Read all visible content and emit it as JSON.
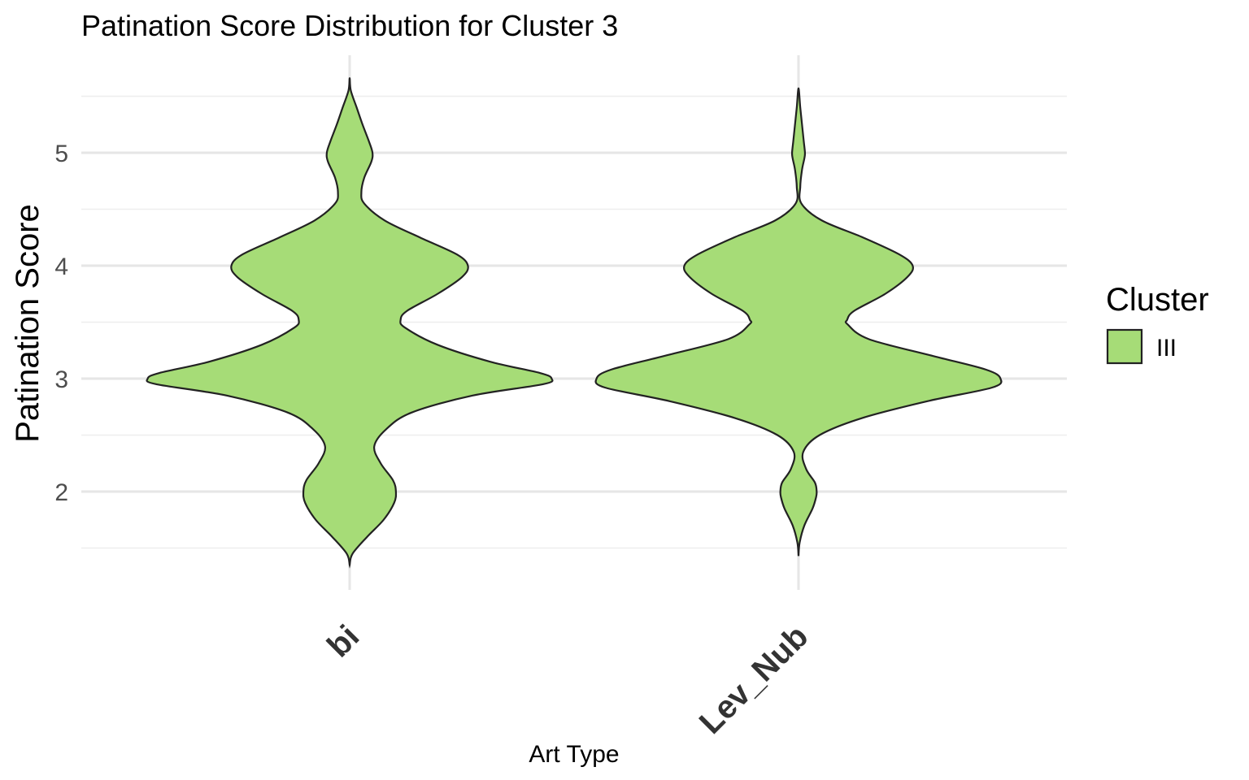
{
  "chart_data": {
    "type": "violin",
    "title": "Patination Score Distribution for Cluster 3",
    "xlabel": "Art Type",
    "ylabel": "Patination Score",
    "ylim": [
      1.35,
      5.72
    ],
    "yticks": [
      2,
      3,
      4,
      5
    ],
    "categories": [
      "bi",
      "Lev_Nub"
    ],
    "grid": true,
    "legend": {
      "title": "Cluster",
      "placement": "right",
      "entries": [
        {
          "label": "III",
          "color": "#a6dc77"
        }
      ]
    },
    "fill_color": "#a6dc77",
    "violins": [
      {
        "category": "bi",
        "y_min": 1.35,
        "y_max": 5.66,
        "profile": [
          [
            1.35,
            0.0
          ],
          [
            1.45,
            0.05
          ],
          [
            1.6,
            0.3
          ],
          [
            1.75,
            0.58
          ],
          [
            1.9,
            0.76
          ],
          [
            2.0,
            0.79
          ],
          [
            2.1,
            0.74
          ],
          [
            2.25,
            0.53
          ],
          [
            2.4,
            0.42
          ],
          [
            2.55,
            0.62
          ],
          [
            2.7,
            1.06
          ],
          [
            2.85,
            2.1
          ],
          [
            2.95,
            3.3
          ],
          [
            3.0,
            3.45
          ],
          [
            3.05,
            3.25
          ],
          [
            3.15,
            2.4
          ],
          [
            3.3,
            1.5
          ],
          [
            3.45,
            0.95
          ],
          [
            3.52,
            0.87
          ],
          [
            3.6,
            0.98
          ],
          [
            3.75,
            1.5
          ],
          [
            3.9,
            1.92
          ],
          [
            4.0,
            2.02
          ],
          [
            4.1,
            1.83
          ],
          [
            4.25,
            1.2
          ],
          [
            4.4,
            0.6
          ],
          [
            4.55,
            0.25
          ],
          [
            4.65,
            0.2
          ],
          [
            4.78,
            0.25
          ],
          [
            4.92,
            0.37
          ],
          [
            5.0,
            0.39
          ],
          [
            5.1,
            0.33
          ],
          [
            5.25,
            0.22
          ],
          [
            5.4,
            0.12
          ],
          [
            5.55,
            0.02
          ],
          [
            5.66,
            0.0
          ]
        ]
      },
      {
        "category": "Lev_Nub",
        "y_min": 1.43,
        "y_max": 5.57,
        "profile": [
          [
            1.43,
            0.0
          ],
          [
            1.55,
            0.02
          ],
          [
            1.7,
            0.1
          ],
          [
            1.85,
            0.24
          ],
          [
            1.95,
            0.3
          ],
          [
            2.0,
            0.31
          ],
          [
            2.08,
            0.28
          ],
          [
            2.2,
            0.13
          ],
          [
            2.35,
            0.08
          ],
          [
            2.5,
            0.36
          ],
          [
            2.65,
            1.08
          ],
          [
            2.8,
            2.2
          ],
          [
            2.92,
            3.3
          ],
          [
            3.0,
            3.45
          ],
          [
            3.08,
            3.2
          ],
          [
            3.2,
            2.3
          ],
          [
            3.35,
            1.2
          ],
          [
            3.48,
            0.84
          ],
          [
            3.52,
            0.83
          ],
          [
            3.6,
            0.95
          ],
          [
            3.75,
            1.48
          ],
          [
            3.9,
            1.86
          ],
          [
            4.0,
            1.95
          ],
          [
            4.1,
            1.72
          ],
          [
            4.25,
            1.1
          ],
          [
            4.4,
            0.4
          ],
          [
            4.55,
            0.05
          ],
          [
            4.7,
            0.03
          ],
          [
            4.85,
            0.06
          ],
          [
            4.95,
            0.1
          ],
          [
            5.0,
            0.11
          ],
          [
            5.1,
            0.09
          ],
          [
            5.25,
            0.06
          ],
          [
            5.4,
            0.03
          ],
          [
            5.57,
            0.0
          ]
        ]
      }
    ]
  }
}
